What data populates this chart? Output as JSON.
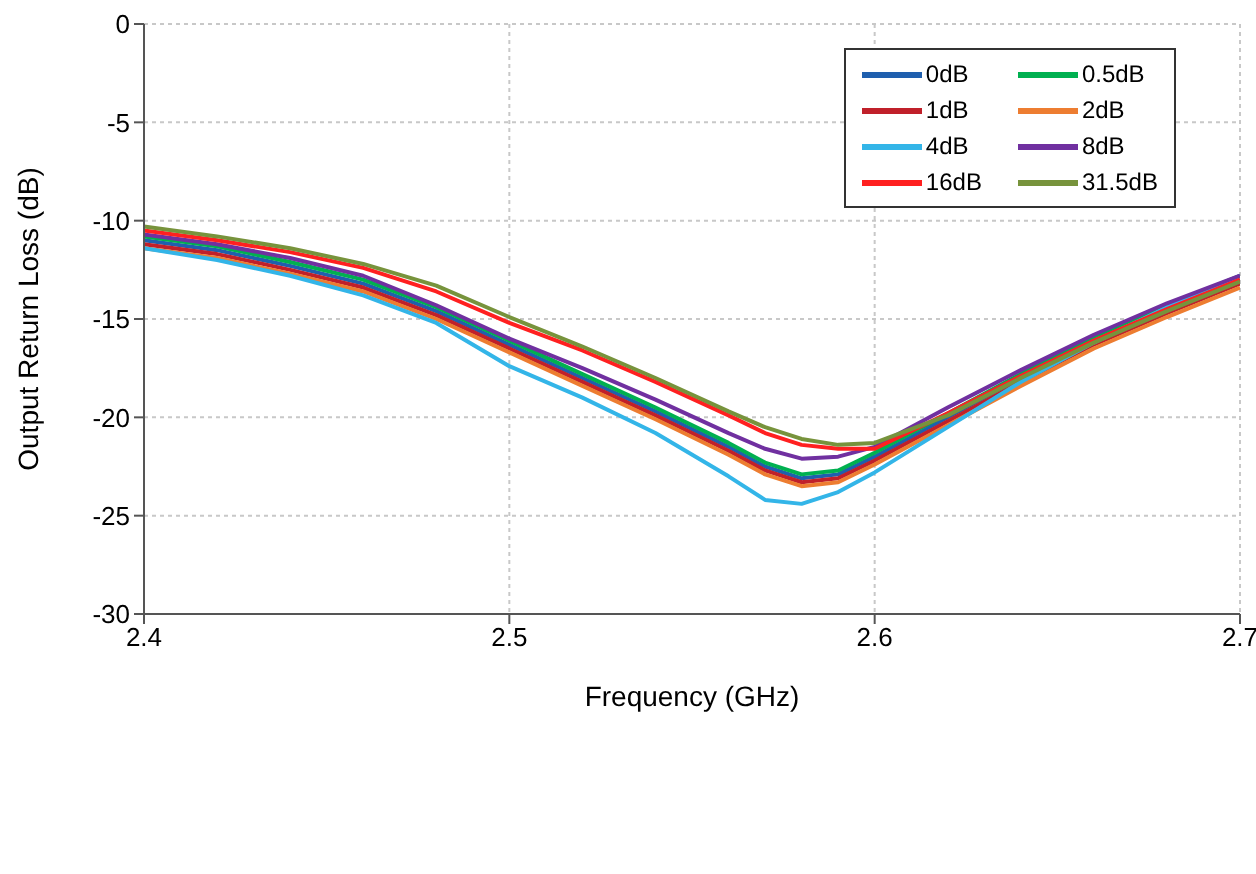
{
  "chart_data": {
    "type": "line",
    "xlabel": "Frequency (GHz)",
    "ylabel": "Output Return Loss (dB)",
    "x": [
      2.4,
      2.42,
      2.44,
      2.46,
      2.48,
      2.5,
      2.52,
      2.54,
      2.56,
      2.57,
      2.58,
      2.59,
      2.6,
      2.62,
      2.64,
      2.66,
      2.68,
      2.7
    ],
    "xlim": [
      2.4,
      2.7
    ],
    "xticks": [
      2.4,
      2.5,
      2.6,
      2.7
    ],
    "ylim": [
      -30,
      0
    ],
    "yticks": [
      -30,
      -25,
      -20,
      -15,
      -10,
      -5,
      0
    ],
    "grid": true,
    "legend": "top right",
    "line_style": "solid",
    "marker": "none",
    "series": [
      {
        "name": "0dB",
        "color": "#1f5fae",
        "values": [
          -11.0,
          -11.5,
          -12.3,
          -13.2,
          -14.6,
          -16.3,
          -18.0,
          -19.7,
          -21.5,
          -22.5,
          -23.1,
          -22.9,
          -22.0,
          -20.0,
          -18.0,
          -16.1,
          -14.5,
          -13.0
        ]
      },
      {
        "name": "0.5dB",
        "color": "#00b050",
        "values": [
          -10.8,
          -11.3,
          -12.1,
          -13.0,
          -14.4,
          -16.1,
          -17.8,
          -19.5,
          -21.3,
          -22.3,
          -22.9,
          -22.7,
          -21.8,
          -19.8,
          -17.8,
          -15.9,
          -14.3,
          -12.8
        ]
      },
      {
        "name": "1dB",
        "color": "#c0202a",
        "values": [
          -11.2,
          -11.7,
          -12.5,
          -13.4,
          -14.8,
          -16.5,
          -18.2,
          -19.9,
          -21.7,
          -22.7,
          -23.3,
          -23.1,
          -22.2,
          -20.2,
          -18.2,
          -16.3,
          -14.7,
          -13.2
        ]
      },
      {
        "name": "2dB",
        "color": "#ed7d31",
        "values": [
          -11.4,
          -11.9,
          -12.7,
          -13.6,
          -15.0,
          -16.7,
          -18.4,
          -20.1,
          -21.9,
          -22.9,
          -23.5,
          -23.3,
          -22.4,
          -20.4,
          -18.4,
          -16.5,
          -14.9,
          -13.4
        ]
      },
      {
        "name": "4dB",
        "color": "#33b5e8",
        "values": [
          -11.4,
          -12.0,
          -12.8,
          -13.8,
          -15.2,
          -17.4,
          -19.0,
          -20.8,
          -23.0,
          -24.2,
          -24.4,
          -23.8,
          -22.8,
          -20.5,
          -18.2,
          -16.2,
          -14.4,
          -12.8
        ]
      },
      {
        "name": "8dB",
        "color": "#7030a0",
        "values": [
          -10.7,
          -11.2,
          -11.9,
          -12.8,
          -14.3,
          -16.0,
          -17.5,
          -19.1,
          -20.8,
          -21.6,
          -22.1,
          -22.0,
          -21.5,
          -19.5,
          -17.6,
          -15.8,
          -14.2,
          -12.8
        ]
      },
      {
        "name": "16dB",
        "color": "#ff2020",
        "values": [
          -10.5,
          -11.0,
          -11.6,
          -12.4,
          -13.6,
          -15.2,
          -16.6,
          -18.2,
          -19.9,
          -20.8,
          -21.4,
          -21.6,
          -21.6,
          -19.8,
          -17.9,
          -16.1,
          -14.5,
          -13.0
        ]
      },
      {
        "name": "31.5dB",
        "color": "#77933c",
        "values": [
          -10.3,
          -10.8,
          -11.4,
          -12.2,
          -13.3,
          -14.9,
          -16.4,
          -18.0,
          -19.7,
          -20.5,
          -21.1,
          -21.4,
          -21.3,
          -19.9,
          -18.0,
          -16.2,
          -14.6,
          -13.1
        ]
      }
    ]
  }
}
